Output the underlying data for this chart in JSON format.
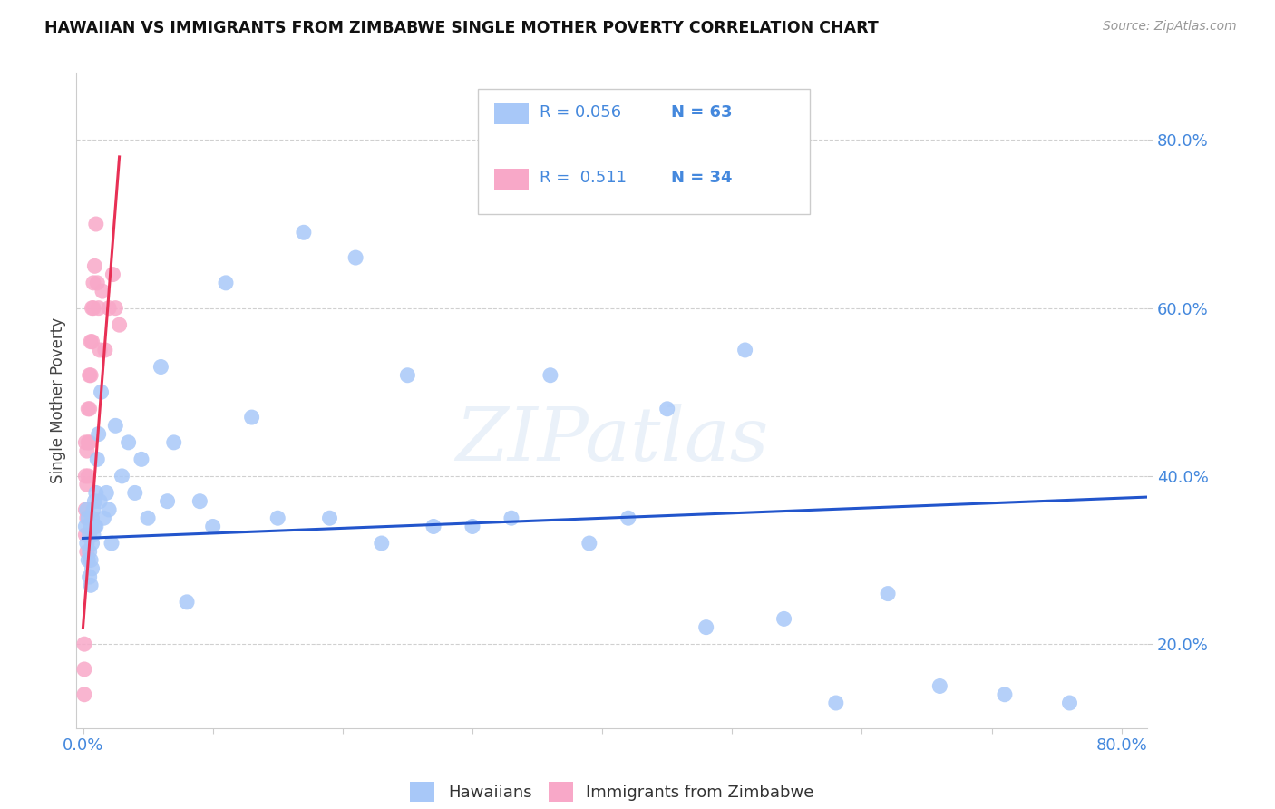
{
  "title": "HAWAIIAN VS IMMIGRANTS FROM ZIMBABWE SINGLE MOTHER POVERTY CORRELATION CHART",
  "source": "Source: ZipAtlas.com",
  "ylabel": "Single Mother Poverty",
  "y_ticks": [
    0.0,
    0.2,
    0.4,
    0.6,
    0.8
  ],
  "y_tick_labels": [
    "",
    "20.0%",
    "40.0%",
    "60.0%",
    "80.0%"
  ],
  "x_lim": [
    -0.005,
    0.82
  ],
  "y_lim": [
    0.1,
    0.88
  ],
  "hawaiian_color": "#a8c8f8",
  "zimbabwe_color": "#f8a8c8",
  "hawaiian_line_color": "#2255cc",
  "zimbabwe_line_color": "#e83055",
  "tick_color": "#4488dd",
  "watermark_text": "ZIPatlas",
  "legend_label_h": "Hawaiians",
  "legend_label_z": "Immigrants from Zimbabwe",
  "hawaiian_x": [
    0.002,
    0.003,
    0.003,
    0.004,
    0.004,
    0.005,
    0.005,
    0.005,
    0.006,
    0.006,
    0.006,
    0.007,
    0.007,
    0.007,
    0.008,
    0.008,
    0.009,
    0.009,
    0.01,
    0.01,
    0.011,
    0.012,
    0.013,
    0.014,
    0.016,
    0.018,
    0.02,
    0.022,
    0.025,
    0.03,
    0.035,
    0.04,
    0.045,
    0.05,
    0.06,
    0.065,
    0.07,
    0.08,
    0.09,
    0.1,
    0.11,
    0.13,
    0.15,
    0.17,
    0.19,
    0.21,
    0.23,
    0.25,
    0.27,
    0.3,
    0.33,
    0.36,
    0.39,
    0.42,
    0.45,
    0.48,
    0.51,
    0.54,
    0.58,
    0.62,
    0.66,
    0.71,
    0.76
  ],
  "hawaiian_y": [
    0.34,
    0.36,
    0.32,
    0.35,
    0.3,
    0.33,
    0.31,
    0.28,
    0.34,
    0.3,
    0.27,
    0.35,
    0.32,
    0.29,
    0.36,
    0.33,
    0.37,
    0.34,
    0.38,
    0.34,
    0.42,
    0.45,
    0.37,
    0.5,
    0.35,
    0.38,
    0.36,
    0.32,
    0.46,
    0.4,
    0.44,
    0.38,
    0.42,
    0.35,
    0.53,
    0.37,
    0.44,
    0.25,
    0.37,
    0.34,
    0.63,
    0.47,
    0.35,
    0.69,
    0.35,
    0.66,
    0.32,
    0.52,
    0.34,
    0.34,
    0.35,
    0.52,
    0.32,
    0.35,
    0.48,
    0.22,
    0.55,
    0.23,
    0.13,
    0.26,
    0.15,
    0.14,
    0.13
  ],
  "zimbabwe_x": [
    0.001,
    0.001,
    0.001,
    0.002,
    0.002,
    0.002,
    0.002,
    0.003,
    0.003,
    0.003,
    0.003,
    0.004,
    0.004,
    0.004,
    0.005,
    0.005,
    0.005,
    0.006,
    0.006,
    0.007,
    0.007,
    0.008,
    0.008,
    0.009,
    0.01,
    0.011,
    0.012,
    0.013,
    0.015,
    0.017,
    0.02,
    0.023,
    0.025,
    0.028
  ],
  "zimbabwe_y": [
    0.2,
    0.17,
    0.14,
    0.44,
    0.4,
    0.36,
    0.33,
    0.43,
    0.39,
    0.35,
    0.31,
    0.48,
    0.44,
    0.4,
    0.52,
    0.48,
    0.44,
    0.56,
    0.52,
    0.6,
    0.56,
    0.63,
    0.6,
    0.65,
    0.7,
    0.63,
    0.6,
    0.55,
    0.62,
    0.55,
    0.6,
    0.64,
    0.6,
    0.58
  ],
  "hawaiian_line_x": [
    0.0,
    0.82
  ],
  "hawaiian_line_y": [
    0.326,
    0.375
  ],
  "zimbabwe_line_x": [
    0.0,
    0.028
  ],
  "zimbabwe_line_y": [
    0.22,
    0.78
  ]
}
